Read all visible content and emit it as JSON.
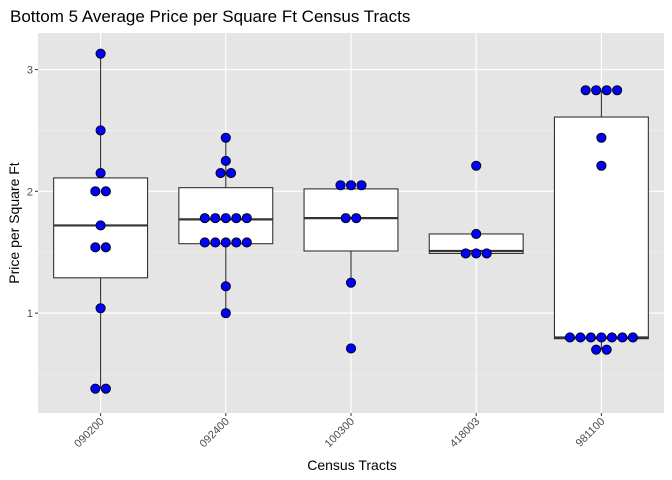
{
  "chart_data": {
    "type": "box",
    "title": "Bottom 5 Average Price per Square Ft Census Tracts",
    "xlabel": "Census Tracts",
    "ylabel": "Price per Square Ft",
    "categories": [
      "090200",
      "092400",
      "100300",
      "418003",
      "981100"
    ],
    "ylim": [
      0.18,
      3.3
    ],
    "yticks": [
      1,
      2,
      3
    ],
    "grid": true,
    "colors": {
      "panel": "#e5e5e5",
      "grid_major": "#ffffff",
      "box_fill": "#ffffff",
      "box_stroke": "#333333",
      "point_fill": "#0000ff",
      "point_stroke": "#000000"
    },
    "boxes": [
      {
        "category": "090200",
        "min": 0.38,
        "q1": 1.29,
        "median": 1.72,
        "q3": 2.11,
        "max": 3.13
      },
      {
        "category": "092400",
        "min": 1.0,
        "q1": 1.57,
        "median": 1.77,
        "q3": 2.03,
        "max": 2.44
      },
      {
        "category": "100300",
        "min": 1.25,
        "q1": 1.51,
        "median": 1.78,
        "q3": 2.02,
        "max": 2.05,
        "outliers": [
          0.71
        ]
      },
      {
        "category": "418003",
        "min": 1.49,
        "q1": 1.49,
        "median": 1.51,
        "q3": 1.65,
        "max": 1.65,
        "outliers": [
          2.21
        ]
      },
      {
        "category": "981100",
        "min": 0.7,
        "q1": 0.79,
        "median": 0.8,
        "q3": 2.61,
        "max": 2.83
      }
    ],
    "points": [
      {
        "category": "090200",
        "values": [
          {
            "y": 3.13,
            "o": 0
          },
          {
            "y": 2.5,
            "o": 0
          },
          {
            "y": 2.15,
            "o": 0
          },
          {
            "y": 2.0,
            "o": -0.5
          },
          {
            "y": 2.0,
            "o": 0.5
          },
          {
            "y": 1.72,
            "o": 0
          },
          {
            "y": 1.54,
            "o": -0.5
          },
          {
            "y": 1.54,
            "o": 0.5
          },
          {
            "y": 1.04,
            "o": 0
          },
          {
            "y": 0.38,
            "o": -0.5
          },
          {
            "y": 0.38,
            "o": 0.5
          }
        ]
      },
      {
        "category": "092400",
        "values": [
          {
            "y": 2.44,
            "o": 0
          },
          {
            "y": 2.25,
            "o": 0
          },
          {
            "y": 2.15,
            "o": -0.5
          },
          {
            "y": 2.15,
            "o": 0.5
          },
          {
            "y": 1.78,
            "o": -2
          },
          {
            "y": 1.78,
            "o": -1
          },
          {
            "y": 1.78,
            "o": 0
          },
          {
            "y": 1.78,
            "o": 1
          },
          {
            "y": 1.78,
            "o": 2
          },
          {
            "y": 1.58,
            "o": -2
          },
          {
            "y": 1.58,
            "o": -1
          },
          {
            "y": 1.58,
            "o": 0
          },
          {
            "y": 1.58,
            "o": 1
          },
          {
            "y": 1.58,
            "o": 2
          },
          {
            "y": 1.22,
            "o": 0
          },
          {
            "y": 1.0,
            "o": 0
          }
        ]
      },
      {
        "category": "100300",
        "values": [
          {
            "y": 2.05,
            "o": -1
          },
          {
            "y": 2.05,
            "o": 0
          },
          {
            "y": 2.05,
            "o": 1
          },
          {
            "y": 1.78,
            "o": -0.5
          },
          {
            "y": 1.78,
            "o": 0.5
          },
          {
            "y": 1.25,
            "o": 0
          },
          {
            "y": 0.71,
            "o": 0
          }
        ]
      },
      {
        "category": "418003",
        "values": [
          {
            "y": 2.21,
            "o": 0
          },
          {
            "y": 1.65,
            "o": 0
          },
          {
            "y": 1.49,
            "o": -1
          },
          {
            "y": 1.49,
            "o": 0
          },
          {
            "y": 1.49,
            "o": 1
          }
        ]
      },
      {
        "category": "981100",
        "values": [
          {
            "y": 2.83,
            "o": -1.5
          },
          {
            "y": 2.83,
            "o": -0.5
          },
          {
            "y": 2.83,
            "o": 0.5
          },
          {
            "y": 2.83,
            "o": 1.5
          },
          {
            "y": 2.44,
            "o": 0
          },
          {
            "y": 2.21,
            "o": 0
          },
          {
            "y": 0.8,
            "o": -3
          },
          {
            "y": 0.8,
            "o": -2
          },
          {
            "y": 0.8,
            "o": -1
          },
          {
            "y": 0.8,
            "o": 0
          },
          {
            "y": 0.8,
            "o": 1
          },
          {
            "y": 0.8,
            "o": 2
          },
          {
            "y": 0.8,
            "o": 3
          },
          {
            "y": 0.7,
            "o": -0.5
          },
          {
            "y": 0.7,
            "o": 0.5
          }
        ]
      }
    ]
  }
}
